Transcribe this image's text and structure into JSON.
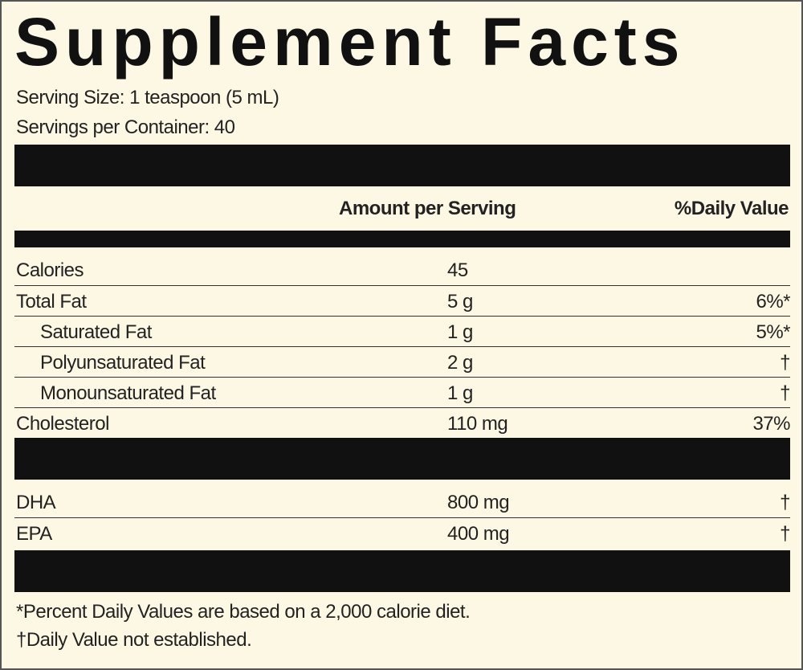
{
  "title": "Supplement Facts",
  "serving_size": "Serving Size: 1 teaspoon (5 mL)",
  "servings_per_container": "Servings per Container: 40",
  "header": {
    "amount": "Amount per Serving",
    "daily_value": "%Daily Value"
  },
  "groups": [
    {
      "rows": [
        {
          "name": "Calories",
          "amount": "45"
        },
        {
          "name": "Total Fat",
          "amount": "5 g",
          "dv": "6%*"
        },
        {
          "name": "Saturated Fat",
          "amount": "1 g",
          "dv": "5%*",
          "indent": true
        },
        {
          "name": "Polyunsaturated Fat",
          "amount": "2 g",
          "dv": "†",
          "indent": true
        },
        {
          "name": "Monounsaturated Fat",
          "amount": "1 g",
          "dv": "†",
          "indent": true
        },
        {
          "name": "Cholesterol",
          "amount": "110 mg",
          "dv": "37%"
        }
      ]
    },
    {
      "rows": [
        {
          "name": "DHA",
          "amount": "800 mg",
          "dv": "†"
        },
        {
          "name": "EPA",
          "amount": "400 mg",
          "dv": "†"
        }
      ]
    }
  ],
  "footnotes": [
    "*Percent Daily Values are based on a 2,000 calorie diet.",
    "†Daily Value not established."
  ]
}
